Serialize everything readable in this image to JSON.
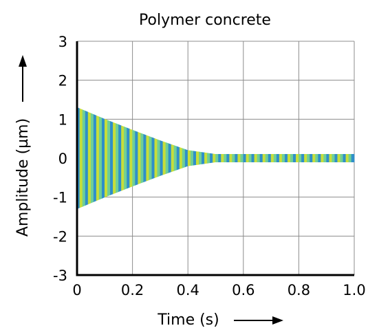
{
  "chart_data": {
    "type": "line",
    "title": "Polymer concrete",
    "xlabel": "Time (s)",
    "ylabel": "Amplitude (µm)",
    "xlim": [
      0,
      1.0
    ],
    "ylim": [
      -3,
      3
    ],
    "x_ticks": [
      "0",
      "0.2",
      "0.4",
      "0.6",
      "0.8",
      "1.0"
    ],
    "y_ticks": [
      "3",
      "2",
      "1",
      "0",
      "-1",
      "-2",
      "-3"
    ],
    "grid": true,
    "series": [
      {
        "signal": "damped oscillation",
        "envelope": {
          "t": [
            0,
            0.1,
            0.2,
            0.3,
            0.4,
            0.5,
            0.6,
            0.8,
            1.0
          ],
          "amplitude": [
            1.3,
            1.0,
            0.72,
            0.45,
            0.2,
            0.1,
            0.1,
            0.1,
            0.1
          ]
        },
        "colors": [
          "#2f8fc9",
          "#c7de3a",
          "#6fcf97"
        ]
      }
    ]
  }
}
